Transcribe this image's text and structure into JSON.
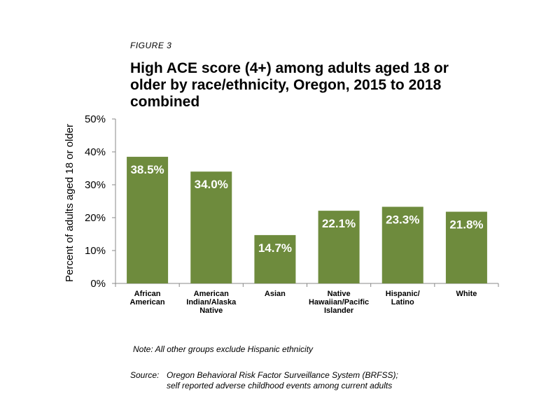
{
  "figure_label": "FIGURE 3",
  "title_lines": [
    "High ACE score (4+) among adults aged 18 or",
    "older by race/ethnicity, Oregon, 2015 to 2018",
    "combined"
  ],
  "note": "Note: All other groups exclude Hispanic ethnicity",
  "source_label": "Source:",
  "source_lines": [
    "Oregon Behavioral Risk Factor Surveillance System (BRFSS);",
    "self reported adverse childhood events among current adults"
  ],
  "bar_color": "#6e8b3d",
  "chart_data": {
    "type": "bar",
    "title": "High ACE score (4+) among adults aged 18 or older by race/ethnicity, Oregon, 2015 to 2018 combined",
    "xlabel": "",
    "ylabel": "Percent of adults aged 18 or older",
    "ylim": [
      0,
      50
    ],
    "yticks": [
      0,
      10,
      20,
      30,
      40,
      50
    ],
    "ytick_labels": [
      "0%",
      "10%",
      "20%",
      "30%",
      "40%",
      "50%"
    ],
    "grid": false,
    "categories": [
      [
        "African",
        "American"
      ],
      [
        "American",
        "Indian/Alaska",
        "Native"
      ],
      [
        "Asian"
      ],
      [
        "Native",
        "Hawaiian/Pacific",
        "Islander"
      ],
      [
        "Hispanic/",
        "Latino"
      ],
      [
        "White"
      ]
    ],
    "values": [
      38.5,
      34.0,
      14.7,
      22.1,
      23.3,
      21.8
    ],
    "value_labels": [
      "38.5%",
      "34.0%",
      "14.7%",
      "22.1%",
      "23.3%",
      "21.8%"
    ]
  }
}
